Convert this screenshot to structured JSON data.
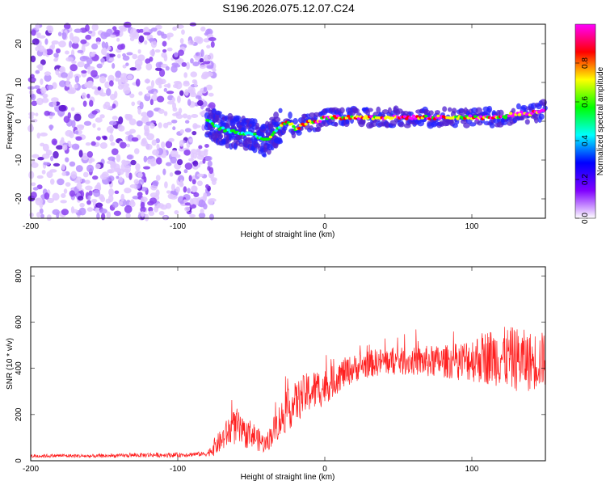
{
  "title": "S196.2026.075.12.07.C24",
  "chart_data": [
    {
      "type": "heatmap",
      "xlabel": "Height of straight line (km)",
      "ylabel": "Frequency (Hz)",
      "xlim": [
        -200,
        150
      ],
      "ylim": [
        -25,
        25
      ],
      "x_ticks": [
        -200,
        -100,
        0,
        100
      ],
      "y_ticks": [
        20,
        10,
        0,
        -10,
        -20
      ],
      "noise_region_x": [
        -200,
        -80
      ],
      "signal_trace": {
        "x": [
          -80,
          -70,
          -60,
          -50,
          -45,
          -40,
          -35,
          -30,
          -25,
          -20,
          -15,
          -10,
          -5,
          0,
          5,
          10,
          20,
          30,
          40,
          50,
          60,
          70,
          80,
          90,
          100,
          110,
          120,
          130,
          140,
          150
        ],
        "frequency": [
          0,
          -2,
          -3,
          -3,
          -4,
          -5,
          -3,
          -1,
          0,
          -2,
          -1,
          0,
          0,
          1,
          1,
          1,
          1,
          1,
          1,
          1,
          1,
          1,
          1,
          1,
          1,
          1,
          1,
          2,
          2,
          3
        ]
      },
      "colorbar": {
        "label": "Normalized spectral amplitude",
        "min": 0,
        "max": 1,
        "ticks": [
          "0.0",
          "0.2",
          "0.4",
          "0.6",
          "0.8"
        ],
        "colors": [
          "#ffffff",
          "#8000ff",
          "#0000ff",
          "#00ffff",
          "#00ff00",
          "#ffff00",
          "#ff0000",
          "#ff00ff"
        ]
      }
    },
    {
      "type": "line",
      "xlabel": "Height of straight line (km)",
      "ylabel": "SNR (10 * v/v)",
      "xlim": [
        -200,
        150
      ],
      "ylim": [
        0,
        840
      ],
      "x_ticks": [
        -200,
        -100,
        0,
        100
      ],
      "y_ticks": [
        0,
        200,
        400,
        600,
        800
      ],
      "series": [
        {
          "name": "SNR",
          "color": "#ff2020",
          "x": [
            -200,
            -180,
            -160,
            -140,
            -120,
            -100,
            -90,
            -80,
            -75,
            -70,
            -65,
            -60,
            -55,
            -50,
            -45,
            -40,
            -35,
            -30,
            -25,
            -20,
            -15,
            -10,
            -5,
            0,
            5,
            10,
            20,
            30,
            40,
            50,
            60,
            70,
            80,
            90,
            100,
            110,
            120,
            130,
            140,
            150
          ],
          "values": [
            20,
            22,
            20,
            22,
            25,
            25,
            28,
            30,
            60,
            90,
            130,
            150,
            110,
            120,
            90,
            70,
            130,
            180,
            220,
            250,
            280,
            300,
            310,
            320,
            340,
            370,
            400,
            420,
            430,
            430,
            430,
            430,
            430,
            430,
            440,
            450,
            450,
            440,
            430,
            440
          ],
          "spread": [
            8,
            8,
            8,
            8,
            10,
            10,
            10,
            10,
            40,
            50,
            70,
            80,
            60,
            60,
            50,
            40,
            60,
            80,
            90,
            90,
            90,
            90,
            90,
            80,
            70,
            70,
            60,
            60,
            60,
            60,
            60,
            70,
            70,
            80,
            100,
            120,
            130,
            140,
            130,
            120
          ]
        }
      ]
    }
  ]
}
